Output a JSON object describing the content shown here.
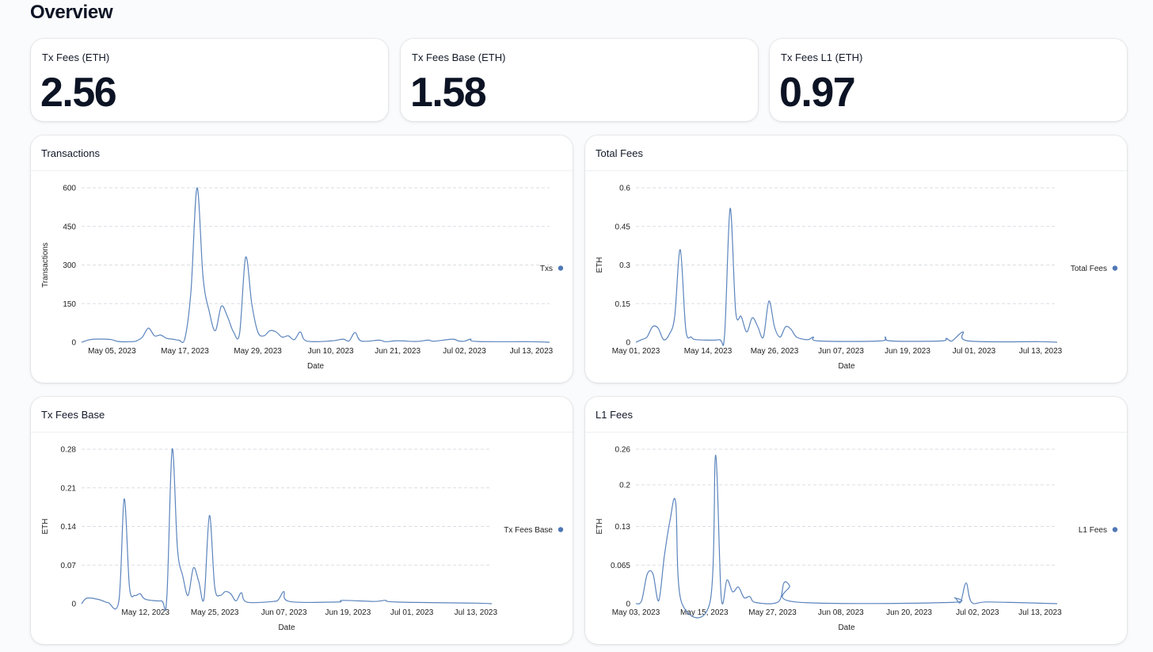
{
  "page": {
    "title": "Overview"
  },
  "stats": [
    {
      "label": "Tx Fees (ETH)",
      "value": "2.56"
    },
    {
      "label": "Tx Fees Base (ETH)",
      "value": "1.58"
    },
    {
      "label": "Tx Fees L1 (ETH)",
      "value": "0.97"
    }
  ],
  "colors": {
    "line": "#5b84bd",
    "grid": "#d9dde3",
    "legend_dot": "#4f78b5"
  },
  "chart_data": [
    {
      "type": "line",
      "title": "Transactions",
      "xlabel": "Date",
      "ylabel": "Transactions",
      "x_range": [
        "2023-04-30",
        "2023-07-16"
      ],
      "ylim": [
        0,
        600
      ],
      "y_ticks": [
        0,
        150,
        300,
        450,
        600
      ],
      "x_ticks": [
        {
          "date": "2023-05-05",
          "label": "May 05, 2023"
        },
        {
          "date": "2023-05-17",
          "label": "May 17, 2023"
        },
        {
          "date": "2023-05-29",
          "label": "May 29, 2023"
        },
        {
          "date": "2023-06-10",
          "label": "Jun 10, 2023"
        },
        {
          "date": "2023-06-21",
          "label": "Jun 21, 2023"
        },
        {
          "date": "2023-07-02",
          "label": "Jul 02, 2023"
        },
        {
          "date": "2023-07-13",
          "label": "Jul 13, 2023"
        }
      ],
      "legend": "right",
      "grid": true,
      "series": [
        {
          "name": "Txs",
          "points": [
            [
              "2023-04-30",
              0
            ],
            [
              "2023-05-01",
              8
            ],
            [
              "2023-05-02",
              12
            ],
            [
              "2023-05-04",
              12
            ],
            [
              "2023-05-05",
              10
            ],
            [
              "2023-05-06",
              3
            ],
            [
              "2023-05-08",
              2
            ],
            [
              "2023-05-09",
              5
            ],
            [
              "2023-05-10",
              20
            ],
            [
              "2023-05-11",
              55
            ],
            [
              "2023-05-12",
              25
            ],
            [
              "2023-05-13",
              28
            ],
            [
              "2023-05-14",
              15
            ],
            [
              "2023-05-15",
              12
            ],
            [
              "2023-05-16",
              8
            ],
            [
              "2023-05-17",
              15
            ],
            [
              "2023-05-18",
              200
            ],
            [
              "2023-05-19",
              600
            ],
            [
              "2023-05-20",
              250
            ],
            [
              "2023-05-21",
              120
            ],
            [
              "2023-05-22",
              45
            ],
            [
              "2023-05-23",
              140
            ],
            [
              "2023-05-24",
              100
            ],
            [
              "2023-05-25",
              40
            ],
            [
              "2023-05-26",
              35
            ],
            [
              "2023-05-27",
              330
            ],
            [
              "2023-05-28",
              150
            ],
            [
              "2023-05-29",
              40
            ],
            [
              "2023-05-30",
              25
            ],
            [
              "2023-05-31",
              45
            ],
            [
              "2023-06-01",
              40
            ],
            [
              "2023-06-02",
              20
            ],
            [
              "2023-06-03",
              25
            ],
            [
              "2023-06-04",
              10
            ],
            [
              "2023-06-05",
              40
            ],
            [
              "2023-06-06",
              5
            ],
            [
              "2023-06-10",
              5
            ],
            [
              "2023-06-12",
              12
            ],
            [
              "2023-06-13",
              5
            ],
            [
              "2023-06-14",
              38
            ],
            [
              "2023-06-15",
              5
            ],
            [
              "2023-06-18",
              8
            ],
            [
              "2023-06-19",
              2
            ],
            [
              "2023-06-21",
              6
            ],
            [
              "2023-06-24",
              3
            ],
            [
              "2023-06-26",
              8
            ],
            [
              "2023-06-27",
              4
            ],
            [
              "2023-06-30",
              12
            ],
            [
              "2023-07-01",
              5
            ],
            [
              "2023-07-02",
              4
            ],
            [
              "2023-07-03",
              12
            ],
            [
              "2023-07-04",
              3
            ],
            [
              "2023-07-13",
              2
            ],
            [
              "2023-07-16",
              0
            ]
          ]
        }
      ]
    },
    {
      "type": "line",
      "title": "Total Fees",
      "xlabel": "Date",
      "ylabel": "ETH",
      "x_range": [
        "2023-05-01",
        "2023-07-16"
      ],
      "ylim": [
        0,
        0.6
      ],
      "y_ticks": [
        0,
        0.15,
        0.3,
        0.45,
        0.6
      ],
      "x_ticks": [
        {
          "date": "2023-05-01",
          "label": "May 01, 2023"
        },
        {
          "date": "2023-05-14",
          "label": "May 14, 2023"
        },
        {
          "date": "2023-05-26",
          "label": "May 26, 2023"
        },
        {
          "date": "2023-06-07",
          "label": "Jun 07, 2023"
        },
        {
          "date": "2023-06-19",
          "label": "Jun 19, 2023"
        },
        {
          "date": "2023-07-01",
          "label": "Jul 01, 2023"
        },
        {
          "date": "2023-07-13",
          "label": "Jul 13, 2023"
        }
      ],
      "legend": "right",
      "grid": true,
      "series": [
        {
          "name": "Total Fees",
          "points": [
            [
              "2023-05-01",
              0
            ],
            [
              "2023-05-02",
              0.01
            ],
            [
              "2023-05-03",
              0.02
            ],
            [
              "2023-05-04",
              0.06
            ],
            [
              "2023-05-05",
              0.055
            ],
            [
              "2023-05-06",
              0.01
            ],
            [
              "2023-05-07",
              0.03
            ],
            [
              "2023-05-08",
              0.1
            ],
            [
              "2023-05-09",
              0.36
            ],
            [
              "2023-05-10",
              0.05
            ],
            [
              "2023-05-11",
              0.02
            ],
            [
              "2023-05-12",
              0.01
            ],
            [
              "2023-05-16",
              0.01
            ],
            [
              "2023-05-17",
              0.03
            ],
            [
              "2023-05-18",
              0.52
            ],
            [
              "2023-05-19",
              0.12
            ],
            [
              "2023-05-20",
              0.1
            ],
            [
              "2023-05-21",
              0.04
            ],
            [
              "2023-05-22",
              0.095
            ],
            [
              "2023-05-23",
              0.06
            ],
            [
              "2023-05-24",
              0.02
            ],
            [
              "2023-05-25",
              0.16
            ],
            [
              "2023-05-26",
              0.06
            ],
            [
              "2023-05-27",
              0.02
            ],
            [
              "2023-05-28",
              0.06
            ],
            [
              "2023-05-29",
              0.05
            ],
            [
              "2023-05-30",
              0.02
            ],
            [
              "2023-06-01",
              0.01
            ],
            [
              "2023-06-02",
              0.02
            ],
            [
              "2023-06-03",
              0.005
            ],
            [
              "2023-06-14",
              0.005
            ],
            [
              "2023-06-15",
              0.02
            ],
            [
              "2023-06-16",
              0.005
            ],
            [
              "2023-06-25",
              0.005
            ],
            [
              "2023-06-26",
              0.015
            ],
            [
              "2023-06-27",
              0.005
            ],
            [
              "2023-06-29",
              0.04
            ],
            [
              "2023-06-30",
              0.005
            ],
            [
              "2023-07-13",
              0.002
            ],
            [
              "2023-07-16",
              0
            ]
          ]
        }
      ]
    },
    {
      "type": "line",
      "title": "Tx Fees Base",
      "xlabel": "Date",
      "ylabel": "ETH",
      "x_range": [
        "2023-04-30",
        "2023-07-16"
      ],
      "ylim": [
        0,
        0.28
      ],
      "y_ticks": [
        0,
        0.07,
        0.14,
        0.21,
        0.28
      ],
      "x_ticks": [
        {
          "date": "2023-05-12",
          "label": "May 12, 2023"
        },
        {
          "date": "2023-05-25",
          "label": "May 25, 2023"
        },
        {
          "date": "2023-06-07",
          "label": "Jun 07, 2023"
        },
        {
          "date": "2023-06-19",
          "label": "Jun 19, 2023"
        },
        {
          "date": "2023-07-01",
          "label": "Jul 01, 2023"
        },
        {
          "date": "2023-07-13",
          "label": "Jul 13, 2023"
        }
      ],
      "legend": "right",
      "grid": true,
      "series": [
        {
          "name": "Tx Fees Base",
          "points": [
            [
              "2023-04-30",
              0
            ],
            [
              "2023-05-01",
              0.01
            ],
            [
              "2023-05-03",
              0.008
            ],
            [
              "2023-05-04",
              0.005
            ],
            [
              "2023-05-05",
              0.002
            ],
            [
              "2023-05-07",
              0.005
            ],
            [
              "2023-05-08",
              0.19
            ],
            [
              "2023-05-09",
              0.03
            ],
            [
              "2023-05-10",
              0.015
            ],
            [
              "2023-05-11",
              0.018
            ],
            [
              "2023-05-12",
              0.008
            ],
            [
              "2023-05-15",
              0.005
            ],
            [
              "2023-05-16",
              0.01
            ],
            [
              "2023-05-17",
              0.28
            ],
            [
              "2023-05-18",
              0.1
            ],
            [
              "2023-05-19",
              0.05
            ],
            [
              "2023-05-20",
              0.015
            ],
            [
              "2023-05-21",
              0.065
            ],
            [
              "2023-05-22",
              0.04
            ],
            [
              "2023-05-23",
              0.01
            ],
            [
              "2023-05-24",
              0.16
            ],
            [
              "2023-05-25",
              0.03
            ],
            [
              "2023-05-26",
              0.015
            ],
            [
              "2023-05-27",
              0.022
            ],
            [
              "2023-05-28",
              0.018
            ],
            [
              "2023-05-29",
              0.005
            ],
            [
              "2023-05-30",
              0.02
            ],
            [
              "2023-05-31",
              0.003
            ],
            [
              "2023-06-05",
              0.004
            ],
            [
              "2023-06-06",
              0.008
            ],
            [
              "2023-06-07",
              0.022
            ],
            [
              "2023-06-08",
              0.004
            ],
            [
              "2023-06-17",
              0.003
            ],
            [
              "2023-06-18",
              0.006
            ],
            [
              "2023-06-24",
              0.004
            ],
            [
              "2023-06-26",
              0.006
            ],
            [
              "2023-06-28",
              0.003
            ],
            [
              "2023-07-13",
              0.001
            ],
            [
              "2023-07-16",
              0
            ]
          ]
        }
      ]
    },
    {
      "type": "line",
      "title": "L1 Fees",
      "xlabel": "Date",
      "ylabel": "ETH",
      "x_range": [
        "2023-05-03",
        "2023-07-16"
      ],
      "ylim": [
        0,
        0.26
      ],
      "y_ticks": [
        0,
        0.065,
        0.13,
        0.2,
        0.26
      ],
      "x_ticks": [
        {
          "date": "2023-05-03",
          "label": "May 03, 2023"
        },
        {
          "date": "2023-05-15",
          "label": "May 15, 2023"
        },
        {
          "date": "2023-05-27",
          "label": "May 27, 2023"
        },
        {
          "date": "2023-06-08",
          "label": "Jun 08, 2023"
        },
        {
          "date": "2023-06-20",
          "label": "Jun 20, 2023"
        },
        {
          "date": "2023-07-02",
          "label": "Jul 02, 2023"
        },
        {
          "date": "2023-07-13",
          "label": "Jul 13, 2023"
        }
      ],
      "legend": "right",
      "grid": true,
      "series": [
        {
          "name": "L1 Fees",
          "points": [
            [
              "2023-05-03",
              0
            ],
            [
              "2023-05-04",
              0.005
            ],
            [
              "2023-05-05",
              0.05
            ],
            [
              "2023-05-06",
              0.05
            ],
            [
              "2023-05-07",
              0.005
            ],
            [
              "2023-05-08",
              0.08
            ],
            [
              "2023-05-09",
              0.14
            ],
            [
              "2023-05-10",
              0.17
            ],
            [
              "2023-05-11",
              0.003
            ],
            [
              "2023-05-16",
              0.002
            ],
            [
              "2023-05-17",
              0.25
            ],
            [
              "2023-05-18",
              0.01
            ],
            [
              "2023-05-19",
              0.04
            ],
            [
              "2023-05-20",
              0.02
            ],
            [
              "2023-05-21",
              0.028
            ],
            [
              "2023-05-22",
              0.01
            ],
            [
              "2023-05-23",
              0.012
            ],
            [
              "2023-05-24",
              0.002
            ],
            [
              "2023-05-28",
              0.003
            ],
            [
              "2023-05-29",
              0.035
            ],
            [
              "2023-05-30",
              0.03
            ],
            [
              "2023-05-31",
              0.003
            ],
            [
              "2023-06-27",
              0.002
            ],
            [
              "2023-06-28",
              0.01
            ],
            [
              "2023-06-29",
              0.002
            ],
            [
              "2023-06-30",
              0.035
            ],
            [
              "2023-07-01",
              0.002
            ],
            [
              "2023-07-04",
              0.003
            ],
            [
              "2023-07-16",
              0
            ]
          ]
        }
      ]
    }
  ]
}
